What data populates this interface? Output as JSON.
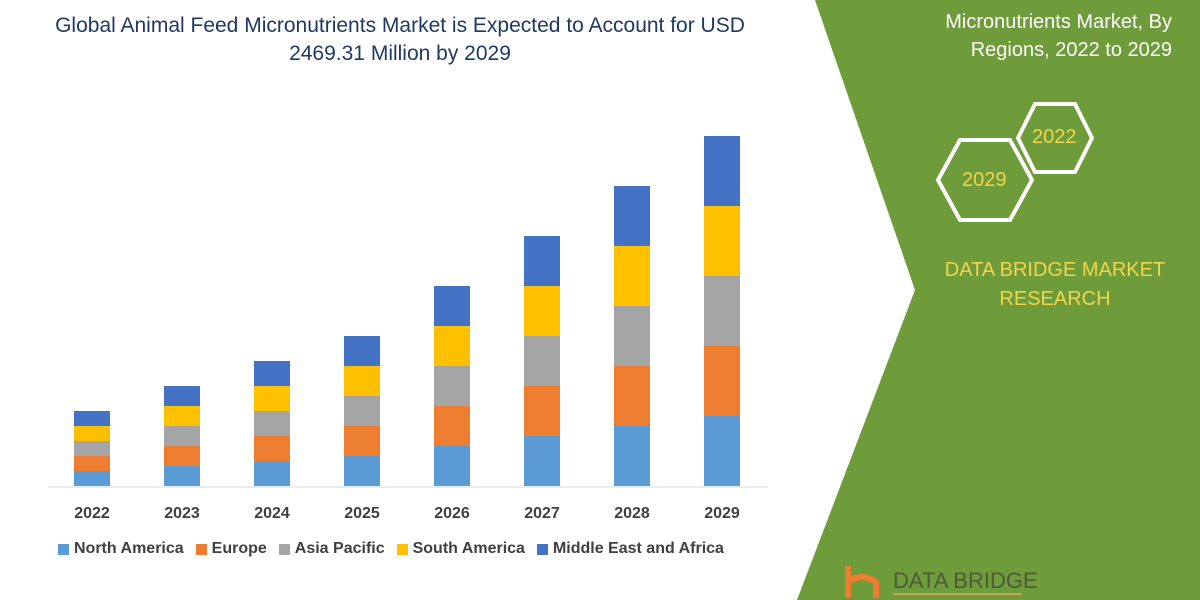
{
  "title": "Global Animal Feed Micronutrients Market is Expected to Account for USD 2469.31 Million by 2029",
  "side_panel": {
    "title": "Micronutrients Market, By Regions, 2022 to 2029",
    "hex_labels": [
      "2022",
      "2029"
    ],
    "brand": "DATA BRIDGE MARKET RESEARCH",
    "logo_text": "DATA BRIDGE",
    "color": "#6f9c3a",
    "accent": "#f2d54a"
  },
  "chart_data": {
    "type": "bar",
    "stacked": true,
    "title": "Global Animal Feed Micronutrients Market is Expected to Account for USD 2469.31 Million by 2029",
    "categories": [
      "2022",
      "2023",
      "2024",
      "2025",
      "2026",
      "2027",
      "2028",
      "2029"
    ],
    "series": [
      {
        "name": "North America",
        "color": "#5b9bd5",
        "values": [
          15,
          20,
          25,
          30,
          40,
          50,
          60,
          70
        ]
      },
      {
        "name": "Europe",
        "color": "#ed7d31",
        "values": [
          15,
          20,
          25,
          30,
          40,
          50,
          60,
          70
        ]
      },
      {
        "name": "Asia Pacific",
        "color": "#a5a5a5",
        "values": [
          15,
          20,
          25,
          30,
          40,
          50,
          60,
          70
        ]
      },
      {
        "name": "South America",
        "color": "#ffc000",
        "values": [
          15,
          20,
          25,
          30,
          40,
          50,
          60,
          70
        ]
      },
      {
        "name": "Middle East and Africa",
        "color": "#4472c4",
        "values": [
          15,
          20,
          25,
          30,
          40,
          50,
          60,
          70
        ]
      }
    ],
    "xlabel": "",
    "ylabel": "",
    "y_axis_shown": false,
    "grid": false,
    "legend": "bottom"
  }
}
